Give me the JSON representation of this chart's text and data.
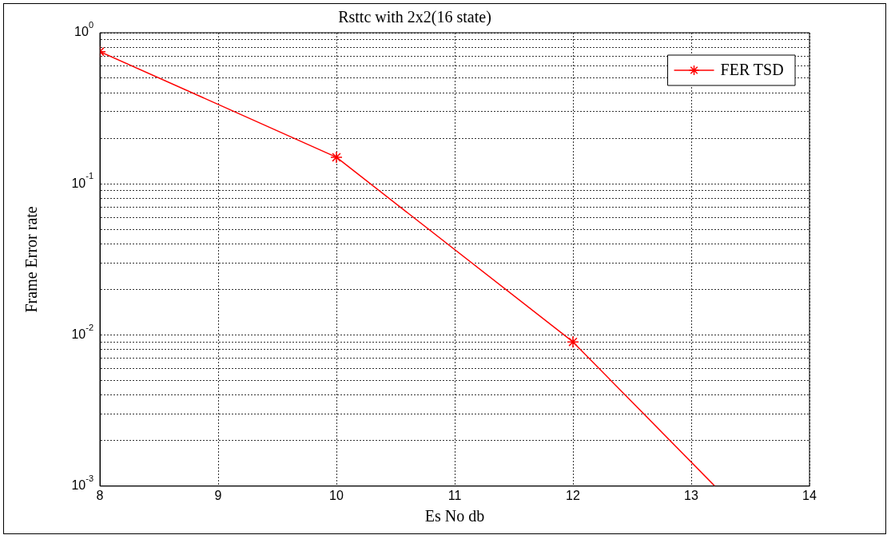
{
  "chart_data": {
    "type": "line",
    "title": "Rsttc with 2x2(16 state)",
    "xlabel": "Es No db",
    "ylabel": "Frame Error rate",
    "x": [
      8,
      10,
      12,
      13.2
    ],
    "series": [
      {
        "name": "FER TSD",
        "color": "#ff0000",
        "values": [
          0.75,
          0.15,
          0.009,
          0.001
        ]
      }
    ],
    "log": "y",
    "xlim": [
      8,
      14
    ],
    "xticks": [
      8,
      9,
      10,
      11,
      12,
      13,
      14
    ],
    "ylim": [
      0.001,
      1
    ],
    "yticks": [
      {
        "value": 0.001,
        "label": "10$^{-3}$"
      },
      {
        "value": 0.002,
        "label": null
      },
      {
        "value": 0.003,
        "label": null
      },
      {
        "value": 0.004,
        "label": null
      },
      {
        "value": 0.005,
        "label": null
      },
      {
        "value": 0.006,
        "label": null
      },
      {
        "value": 0.007,
        "label": null
      },
      {
        "value": 0.008,
        "label": null
      },
      {
        "value": 0.009,
        "label": null
      },
      {
        "value": 0.01,
        "label": "10$^{-2}$"
      },
      {
        "value": 0.02,
        "label": null
      },
      {
        "value": 0.03,
        "label": null
      },
      {
        "value": 0.04,
        "label": null
      },
      {
        "value": 0.05,
        "label": null
      },
      {
        "value": 0.06,
        "label": null
      },
      {
        "value": 0.07,
        "label": null
      },
      {
        "value": 0.08,
        "label": null
      },
      {
        "value": 0.09,
        "label": null
      },
      {
        "value": 0.1,
        "label": "10$^{-1}$"
      },
      {
        "value": 0.2,
        "label": null
      },
      {
        "value": 0.3,
        "label": null
      },
      {
        "value": 0.4,
        "label": null
      },
      {
        "value": 0.5,
        "label": null
      },
      {
        "value": 0.6,
        "label": null
      },
      {
        "value": 0.7,
        "label": null
      },
      {
        "value": 0.8,
        "label": null
      },
      {
        "value": 0.9,
        "label": null
      },
      {
        "value": 1,
        "label": "10$^{0}$"
      }
    ],
    "grid": true,
    "legend": "top right",
    "marker": "cross",
    "line_style": "solid"
  }
}
